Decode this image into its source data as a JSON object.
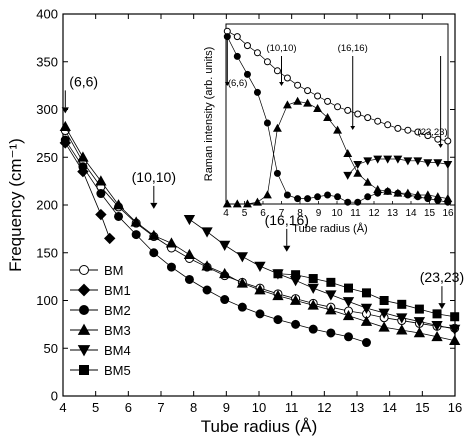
{
  "chart_data": [
    {
      "type": "scatter",
      "xlabel": "Tube radius (Å)",
      "ylabel": "Frequency (cm⁻¹)",
      "xlim": [
        4,
        16
      ],
      "ylim": [
        0,
        400
      ],
      "xticks": [
        4,
        5,
        6,
        7,
        8,
        9,
        10,
        11,
        12,
        13,
        14,
        15,
        16
      ],
      "yticks": [
        0,
        50,
        100,
        150,
        200,
        250,
        300,
        350,
        400
      ],
      "grid": false,
      "legend_position": "bottom-left",
      "series": [
        {
          "name": "BM",
          "marker": "open-circle",
          "color": "#000000",
          "x": [
            4.07,
            4.61,
            5.16,
            5.7,
            6.24,
            6.78,
            7.32,
            7.87,
            8.41,
            8.95,
            9.49,
            10.03,
            10.58,
            11.12,
            11.66,
            12.2,
            12.74,
            13.29,
            13.83,
            14.37,
            14.91,
            15.45,
            15.99
          ],
          "y": [
            278,
            245,
            219,
            198,
            181,
            167,
            155,
            144,
            135,
            126,
            119,
            113,
            107,
            102,
            97,
            93,
            89,
            86,
            82,
            79,
            76,
            73,
            71
          ]
        },
        {
          "name": "BM1",
          "marker": "diamond",
          "color": "#000000",
          "x": [
            4.07,
            4.61,
            5.16,
            5.43
          ],
          "y": [
            265,
            235,
            190,
            165
          ]
        },
        {
          "name": "BM2",
          "marker": "circle",
          "color": "#000000",
          "x": [
            4.07,
            4.61,
            5.16,
            5.7,
            6.24,
            6.78,
            7.32,
            7.87,
            8.41,
            8.95,
            9.49,
            10.03,
            10.58,
            11.12,
            11.66,
            12.2,
            12.74,
            13.29
          ],
          "y": [
            268,
            240,
            212,
            188,
            169,
            150,
            135,
            122,
            111,
            101,
            93,
            86,
            80,
            75,
            70,
            66,
            62,
            56
          ]
        },
        {
          "name": "BM3",
          "marker": "triangle-up",
          "color": "#000000",
          "x": [
            4.07,
            4.61,
            5.16,
            5.7,
            6.24,
            6.78,
            7.32,
            7.87,
            8.41,
            8.95,
            9.49,
            10.03,
            10.58,
            11.12,
            11.66,
            12.2,
            12.74,
            13.29,
            13.83,
            14.37,
            14.91,
            15.45,
            15.99
          ],
          "y": [
            282,
            250,
            225,
            200,
            182,
            168,
            160,
            148,
            136,
            128,
            118,
            111,
            105,
            100,
            95,
            90,
            84,
            78,
            72,
            69,
            66,
            62,
            58
          ]
        },
        {
          "name": "BM4",
          "marker": "triangle-down",
          "color": "#000000",
          "x": [
            7.87,
            8.41,
            8.95,
            9.49,
            10.03,
            10.58,
            11.12,
            11.66,
            12.2,
            12.74,
            13.29,
            13.83,
            14.37,
            14.91,
            15.45,
            15.99
          ],
          "y": [
            185,
            172,
            158,
            146,
            136,
            128,
            121,
            113,
            106,
            99,
            92,
            87,
            82,
            78,
            74,
            70
          ]
        },
        {
          "name": "BM5",
          "marker": "square",
          "color": "#000000",
          "x": [
            10.58,
            11.12,
            11.66,
            12.2,
            12.74,
            13.29,
            13.83,
            14.37,
            14.91,
            15.45,
            15.99
          ],
          "y": [
            128,
            127,
            123,
            119,
            113,
            108,
            100,
            96,
            91,
            86,
            83
          ]
        }
      ],
      "annotations": [
        {
          "text": "(6,6)",
          "x": 4.07,
          "y": 300
        },
        {
          "text": "(10,10)",
          "x": 6.78,
          "y": 200
        },
        {
          "text": "(16,16)",
          "x": 10.85,
          "y": 155
        },
        {
          "text": "(23,23)",
          "x": 15.6,
          "y": 95
        }
      ]
    },
    {
      "type": "line",
      "xlabel": "Tube radius (Å)",
      "ylabel": "Raman intensity (arb. units)",
      "xlim": [
        4,
        16
      ],
      "xticks": [
        4,
        5,
        6,
        7,
        8,
        9,
        10,
        11,
        12,
        13,
        14,
        15,
        16
      ],
      "y_tick_labels_shown": false,
      "grid": false,
      "series": [
        {
          "marker": "open-circle",
          "x": [
            4.07,
            4.61,
            5.16,
            5.7,
            6.24,
            6.78,
            7.32,
            7.87,
            8.41,
            8.95,
            9.49,
            10.03,
            10.58,
            11.12,
            11.66,
            12.2,
            12.74,
            13.29,
            13.83,
            14.37,
            14.91,
            15.45,
            15.99
          ],
          "y": [
            0.96,
            0.93,
            0.88,
            0.84,
            0.79,
            0.74,
            0.7,
            0.66,
            0.63,
            0.6,
            0.57,
            0.54,
            0.52,
            0.5,
            0.48,
            0.46,
            0.44,
            0.42,
            0.41,
            0.4,
            0.38,
            0.36,
            0.35
          ]
        },
        {
          "marker": "circle",
          "x": [
            4.07,
            4.61,
            5.16,
            5.7,
            6.24,
            6.78,
            7.32,
            7.87,
            8.41,
            8.95,
            9.49,
            10.03,
            10.58,
            11.12,
            11.66,
            12.2,
            12.74,
            13.29,
            13.83,
            14.37,
            14.91,
            15.45,
            15.99
          ],
          "y": [
            0.93,
            0.82,
            0.72,
            0.62,
            0.45,
            0.17,
            0.05,
            0.03,
            0.03,
            0.04,
            0.05,
            0.04,
            0.01,
            0.01,
            0.04,
            0.06,
            0.07,
            0.06,
            0.05,
            0.04,
            0.03,
            0.02,
            0.01
          ]
        },
        {
          "marker": "triangle-up",
          "x": [
            4.07,
            4.61,
            5.16,
            5.7,
            6.24,
            6.78,
            7.32,
            7.87,
            8.41,
            8.95,
            9.49,
            10.03,
            10.58,
            11.12,
            11.66,
            12.2,
            12.74,
            13.29,
            13.83,
            14.37,
            14.91,
            15.45,
            15.99
          ],
          "y": [
            0.0,
            0.0,
            0.0,
            0.01,
            0.05,
            0.42,
            0.55,
            0.57,
            0.56,
            0.53,
            0.48,
            0.41,
            0.28,
            0.17,
            0.12,
            0.08,
            0.07,
            0.06,
            0.06,
            0.05,
            0.05,
            0.04,
            0.03
          ]
        },
        {
          "marker": "triangle-down",
          "x": [
            10.58,
            11.12,
            11.66,
            12.2,
            12.74,
            13.29,
            13.83,
            14.37,
            14.91,
            15.45,
            15.99
          ],
          "y": [
            0.16,
            0.22,
            0.24,
            0.25,
            0.25,
            0.25,
            0.24,
            0.24,
            0.23,
            0.23,
            0.22
          ]
        }
      ],
      "annotations": [
        {
          "text": "(6,6)",
          "x": 4.3
        },
        {
          "text": "(10,10)",
          "x": 7.0
        },
        {
          "text": "(16,16)",
          "x": 10.85
        },
        {
          "text": "(23,23)",
          "x": 15.6
        }
      ]
    }
  ]
}
